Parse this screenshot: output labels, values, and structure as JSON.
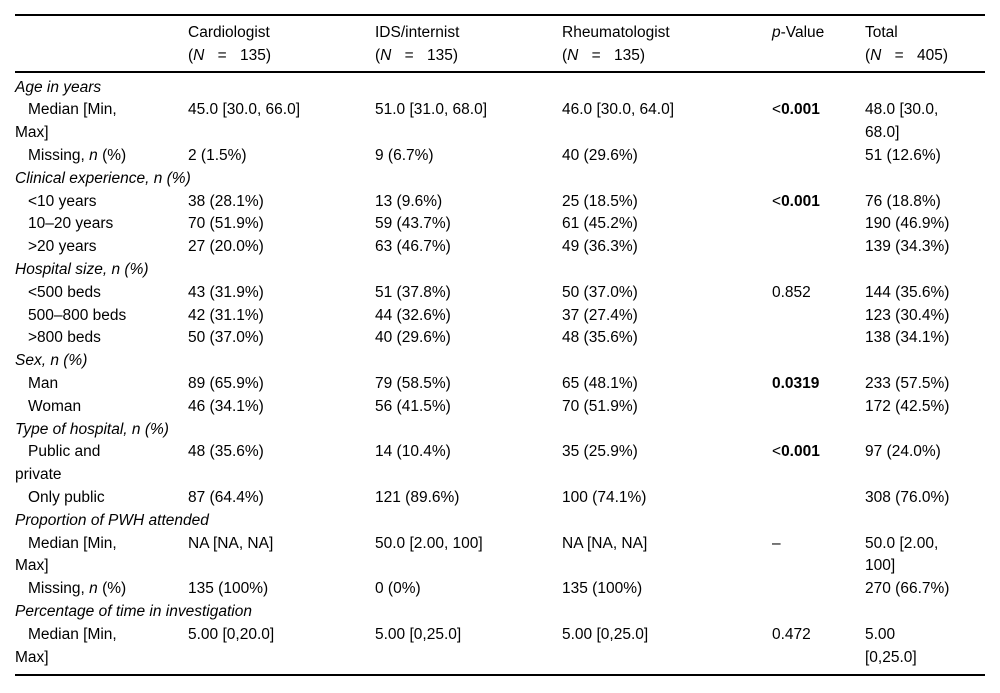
{
  "table": {
    "columns": [
      {
        "key": "label",
        "title": ""
      },
      {
        "key": "cardiologist",
        "title": "Cardiologist",
        "n_line": {
          "open": "(",
          "symbol": "N",
          "eq": "=",
          "count": "135)"
        }
      },
      {
        "key": "ids_internist",
        "title": "IDS/internist",
        "n_line": {
          "open": "(",
          "symbol": "N",
          "eq": "=",
          "count": "135)"
        }
      },
      {
        "key": "rheumatologist",
        "title": "Rheumatologist",
        "n_line": {
          "open": "(",
          "symbol": "N",
          "eq": "=",
          "count": "135)"
        }
      },
      {
        "key": "p_value",
        "title_italic": "p",
        "title_rest": "-Value"
      },
      {
        "key": "total",
        "title": "Total",
        "n_line": {
          "open": "(",
          "symbol": "N",
          "eq": "=",
          "count": "405)"
        }
      }
    ],
    "rows": [
      {
        "type": "section",
        "label": "Age in years"
      },
      {
        "type": "data",
        "label": [
          {
            "t": "Median [Min,\nMax]"
          }
        ],
        "cells": [
          "45.0 [30.0, 66.0]",
          "51.0 [31.0, 68.0]",
          "46.0 [30.0, 64.0]"
        ],
        "p": {
          "prefix": "<",
          "value": "0.001",
          "bold": true
        },
        "total": "48.0 [30.0,\n68.0]"
      },
      {
        "type": "data",
        "label": [
          {
            "t": "Missing, "
          },
          {
            "t": "n",
            "i": true
          },
          {
            "t": " (%)"
          }
        ],
        "cells": [
          "2 (1.5%)",
          "9 (6.7%)",
          "40 (29.6%)"
        ],
        "p": null,
        "total": "51 (12.6%)"
      },
      {
        "type": "section",
        "label": "Clinical experience, n (%)"
      },
      {
        "type": "data",
        "label": [
          {
            "t": "<10 years"
          }
        ],
        "cells": [
          "38 (28.1%)",
          "13 (9.6%)",
          "25 (18.5%)"
        ],
        "p": {
          "prefix": "<",
          "value": "0.001",
          "bold": true
        },
        "total": "76 (18.8%)"
      },
      {
        "type": "data",
        "label": [
          {
            "t": "10–20 years"
          }
        ],
        "cells": [
          "70 (51.9%)",
          "59 (43.7%)",
          "61 (45.2%)"
        ],
        "p": null,
        "total": "190 (46.9%)"
      },
      {
        "type": "data",
        "label": [
          {
            "t": ">20 years"
          }
        ],
        "cells": [
          "27 (20.0%)",
          "63 (46.7%)",
          "49 (36.3%)"
        ],
        "p": null,
        "total": "139 (34.3%)"
      },
      {
        "type": "section",
        "label": "Hospital size, n (%)"
      },
      {
        "type": "data",
        "label": [
          {
            "t": "<500 beds"
          }
        ],
        "cells": [
          "43 (31.9%)",
          "51 (37.8%)",
          "50 (37.0%)"
        ],
        "p": {
          "prefix": "",
          "value": "0.852",
          "bold": false
        },
        "total": "144 (35.6%)"
      },
      {
        "type": "data",
        "label": [
          {
            "t": "500–800 beds"
          }
        ],
        "cells": [
          "42 (31.1%)",
          "44 (32.6%)",
          "37 (27.4%)"
        ],
        "p": null,
        "total": "123 (30.4%)"
      },
      {
        "type": "data",
        "label": [
          {
            "t": ">800 beds"
          }
        ],
        "cells": [
          "50 (37.0%)",
          "40 (29.6%)",
          "48 (35.6%)"
        ],
        "p": null,
        "total": "138 (34.1%)"
      },
      {
        "type": "section",
        "label": "Sex, n (%)"
      },
      {
        "type": "data",
        "label": [
          {
            "t": "Man"
          }
        ],
        "cells": [
          "89 (65.9%)",
          "79 (58.5%)",
          "65 (48.1%)"
        ],
        "p": {
          "prefix": "",
          "value": "0.0319",
          "bold": true
        },
        "total": "233 (57.5%)"
      },
      {
        "type": "data",
        "label": [
          {
            "t": "Woman"
          }
        ],
        "cells": [
          "46 (34.1%)",
          "56 (41.5%)",
          "70 (51.9%)"
        ],
        "p": null,
        "total": "172 (42.5%)"
      },
      {
        "type": "section",
        "label": "Type of hospital, n (%)"
      },
      {
        "type": "data",
        "label": [
          {
            "t": "Public and\nprivate"
          }
        ],
        "cells": [
          "48 (35.6%)",
          "14 (10.4%)",
          "35 (25.9%)"
        ],
        "p": {
          "prefix": "<",
          "value": "0.001",
          "bold": true
        },
        "total": "97 (24.0%)"
      },
      {
        "type": "data",
        "label": [
          {
            "t": "Only public"
          }
        ],
        "cells": [
          "87 (64.4%)",
          "121 (89.6%)",
          "100 (74.1%)"
        ],
        "p": null,
        "total": "308 (76.0%)"
      },
      {
        "type": "section",
        "label": "Proportion of PWH attended"
      },
      {
        "type": "data",
        "label": [
          {
            "t": "Median [Min,\nMax]"
          }
        ],
        "cells": [
          "NA [NA, NA]",
          "50.0 [2.00, 100]",
          "NA [NA, NA]"
        ],
        "p": {
          "prefix": "",
          "value": "–",
          "bold": false
        },
        "total": "50.0 [2.00,\n100]"
      },
      {
        "type": "data",
        "label": [
          {
            "t": "Missing, "
          },
          {
            "t": "n",
            "i": true
          },
          {
            "t": " (%)"
          }
        ],
        "cells": [
          "135 (100%)",
          "0 (0%)",
          "135 (100%)"
        ],
        "p": null,
        "total": "270 (66.7%)"
      },
      {
        "type": "section",
        "label": "Percentage of time in investigation"
      },
      {
        "type": "data",
        "label": [
          {
            "t": "Median [Min,\nMax]"
          }
        ],
        "cells": [
          "5.00 [0,20.0]",
          "5.00 [0,25.0]",
          "5.00 [0,25.0]"
        ],
        "p": {
          "prefix": "",
          "value": "0.472",
          "bold": false
        },
        "total": "5.00\n[0,25.0]"
      }
    ]
  }
}
